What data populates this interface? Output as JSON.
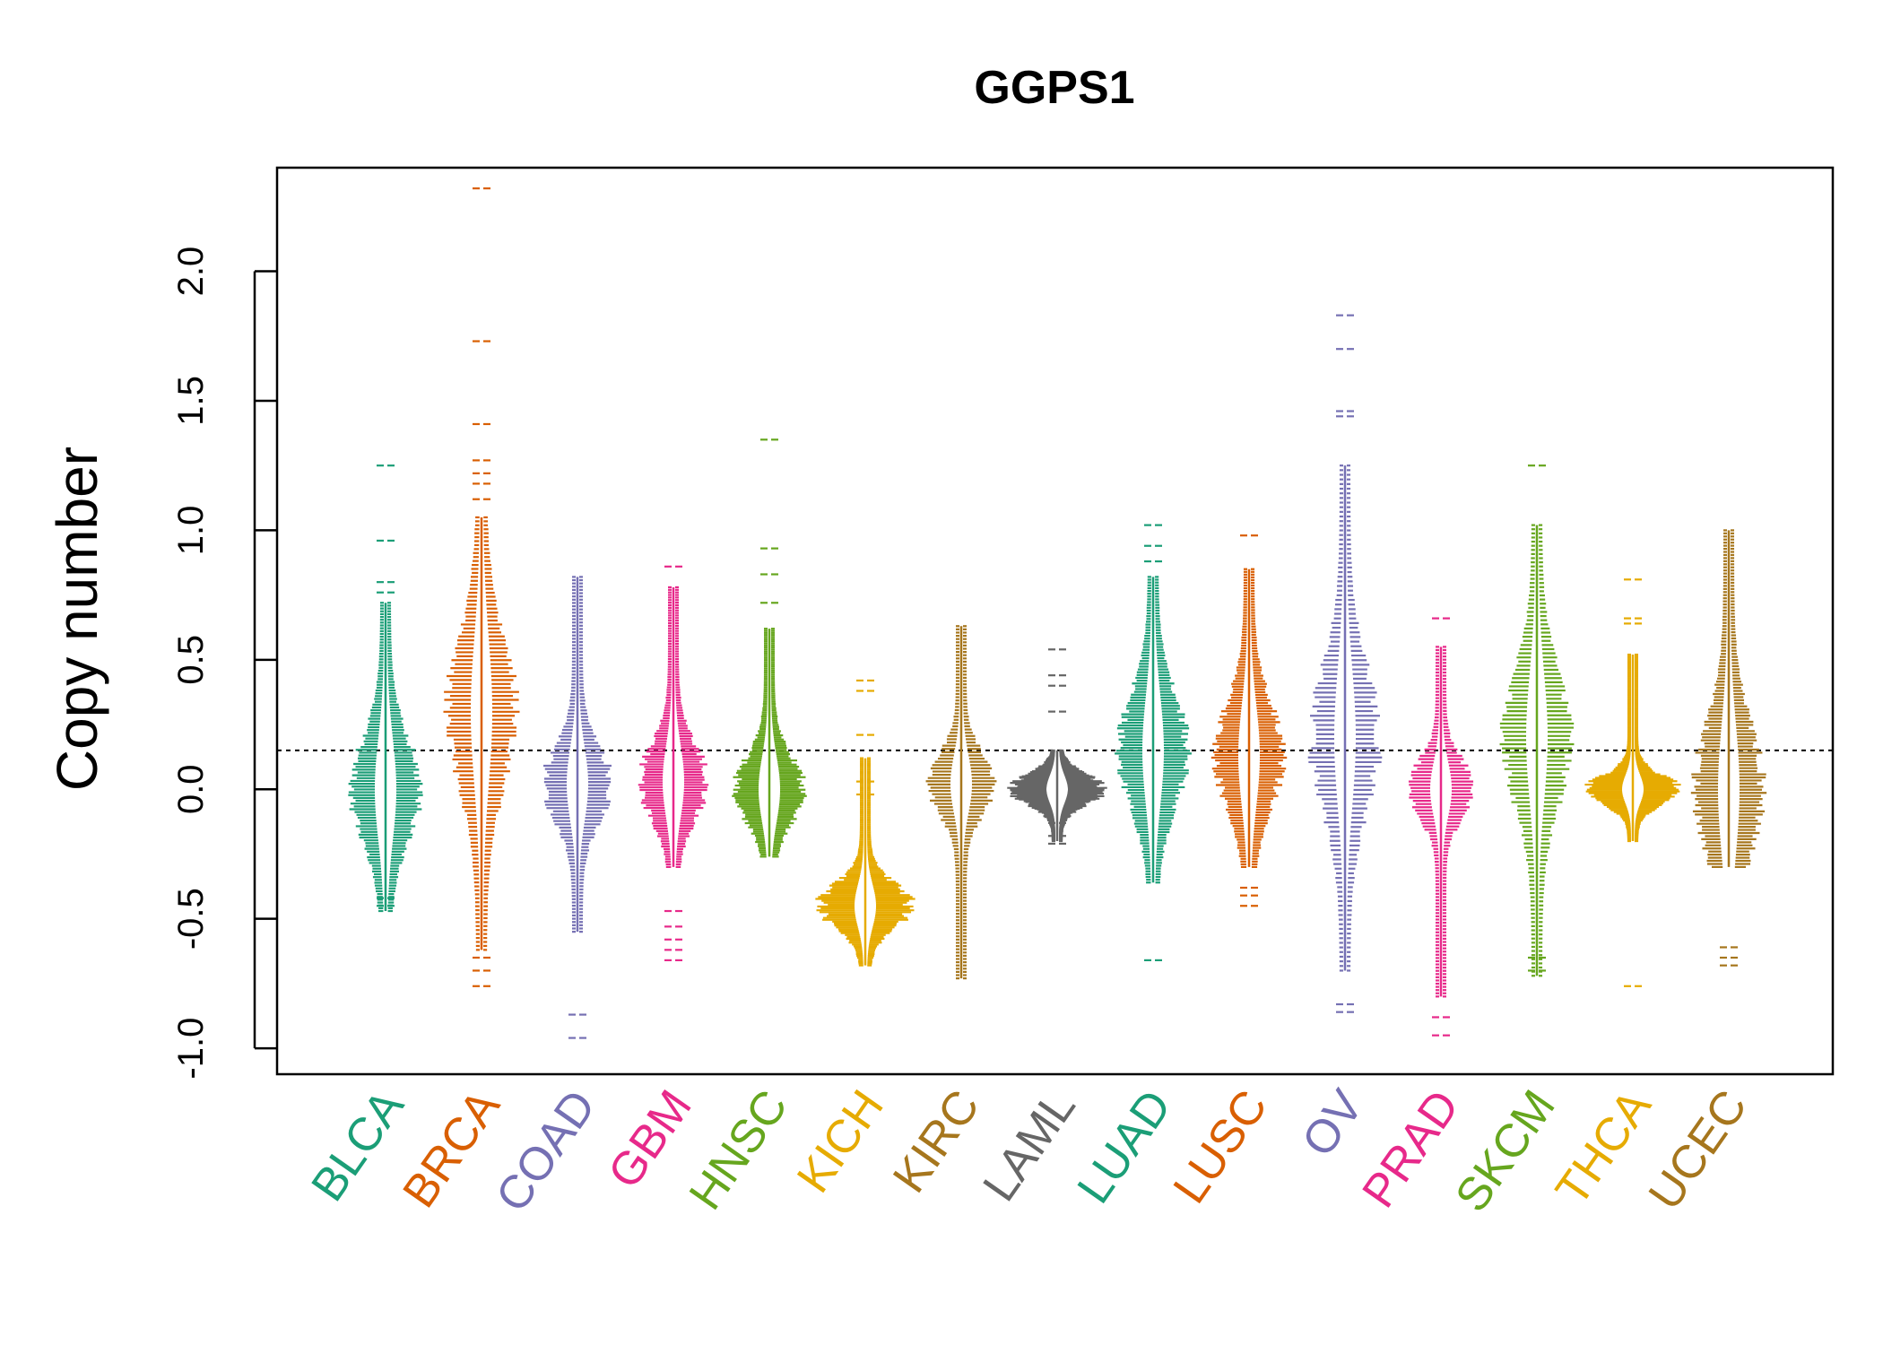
{
  "chart_data": {
    "type": "beeswarm",
    "title": "GGPS1",
    "xlabel": "",
    "ylabel": "Copy number",
    "ylim": [
      -1.1,
      2.4
    ],
    "yticks": [
      "-1.0",
      "-0.5",
      "0.0",
      "0.5",
      "1.0",
      "1.5",
      "2.0"
    ],
    "ytick_values": [
      -1.0,
      -0.5,
      0.0,
      0.5,
      1.0,
      1.5,
      2.0
    ],
    "reference_line": 0.15,
    "categories": [
      "BLCA",
      "BRCA",
      "COAD",
      "GBM",
      "HNSC",
      "KICH",
      "KIRC",
      "LAML",
      "LUAD",
      "LUSC",
      "OV",
      "PRAD",
      "SKCM",
      "THCA",
      "UCEC"
    ],
    "colors": [
      "#1B9E77",
      "#D95F02",
      "#7570B3",
      "#E7298A",
      "#66A61E",
      "#E6AB02",
      "#A6761D",
      "#666666",
      "#1B9E77",
      "#D95F02",
      "#7570B3",
      "#E7298A",
      "#66A61E",
      "#E6AB02",
      "#A6761D"
    ],
    "series": [
      {
        "name": "BLCA",
        "min": -0.47,
        "max": 0.72,
        "center": 0.0,
        "spread": 0.28,
        "outliers": [
          1.25,
          0.96,
          0.8,
          0.76,
          -0.45,
          -0.42
        ]
      },
      {
        "name": "BRCA",
        "min": -0.62,
        "max": 1.05,
        "center": 0.3,
        "spread": 0.4,
        "outliers": [
          2.32,
          1.73,
          1.41,
          1.27,
          1.22,
          1.18,
          1.12,
          -0.65,
          -0.7,
          -0.76
        ]
      },
      {
        "name": "COAD",
        "min": -0.55,
        "max": 0.82,
        "center": 0.02,
        "spread": 0.2,
        "outliers": [
          -0.87,
          -0.96
        ]
      },
      {
        "name": "GBM",
        "min": -0.3,
        "max": 0.78,
        "center": 0.03,
        "spread": 0.2,
        "outliers": [
          0.86,
          -0.47,
          -0.53,
          -0.58,
          -0.62,
          -0.66
        ]
      },
      {
        "name": "HNSC",
        "min": -0.26,
        "max": 0.62,
        "center": 0.0,
        "spread": 0.18,
        "outliers": [
          1.35,
          0.93,
          0.83,
          0.72
        ]
      },
      {
        "name": "KICH",
        "min": -0.68,
        "max": 0.12,
        "center": -0.45,
        "spread": 0.12,
        "outliers": [
          0.42,
          0.38,
          0.21,
          0.03,
          -0.02
        ]
      },
      {
        "name": "KIRC",
        "min": -0.73,
        "max": 0.63,
        "center": 0.02,
        "spread": 0.16,
        "outliers": []
      },
      {
        "name": "LAML",
        "min": -0.2,
        "max": 0.15,
        "center": 0.0,
        "spread": 0.08,
        "outliers": [
          0.54,
          0.44,
          0.4,
          0.3,
          -0.13,
          -0.18,
          -0.21
        ]
      },
      {
        "name": "LUAD",
        "min": -0.36,
        "max": 0.82,
        "center": 0.15,
        "spread": 0.3,
        "outliers": [
          1.02,
          0.94,
          0.88,
          -0.66
        ]
      },
      {
        "name": "LUSC",
        "min": -0.3,
        "max": 0.85,
        "center": 0.13,
        "spread": 0.28,
        "outliers": [
          0.98,
          -0.38,
          -0.41,
          -0.45
        ]
      },
      {
        "name": "OV",
        "min": -0.7,
        "max": 1.25,
        "center": 0.2,
        "spread": 0.38,
        "outliers": [
          1.83,
          1.7,
          1.46,
          1.44,
          -0.83,
          -0.86
        ]
      },
      {
        "name": "PRAD",
        "min": -0.8,
        "max": 0.55,
        "center": 0.0,
        "spread": 0.15,
        "outliers": [
          0.66,
          -0.88,
          -0.95
        ]
      },
      {
        "name": "SKCM",
        "min": -0.72,
        "max": 1.02,
        "center": 0.2,
        "spread": 0.35,
        "outliers": [
          1.25,
          -0.65,
          -0.7
        ]
      },
      {
        "name": "THCA",
        "min": -0.2,
        "max": 0.52,
        "center": 0.0,
        "spread": 0.08,
        "outliers": [
          0.81,
          0.66,
          0.64,
          -0.76
        ]
      },
      {
        "name": "UCEC",
        "min": -0.3,
        "max": 1.0,
        "center": 0.0,
        "spread": 0.35,
        "outliers": [
          -0.61,
          -0.65,
          -0.68
        ]
      }
    ]
  }
}
